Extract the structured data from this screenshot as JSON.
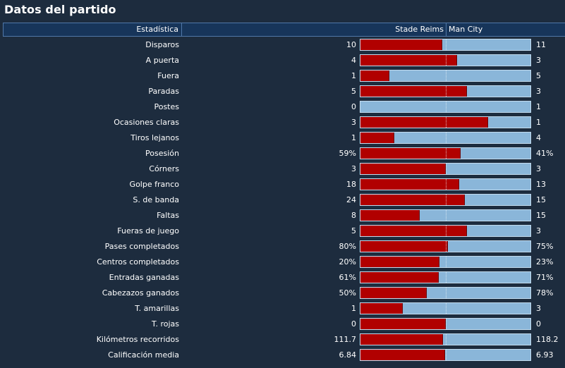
{
  "title": "Datos del partido",
  "header": {
    "stat_label": "Estadística",
    "home_team": "Stade Reims",
    "away_team": "Man City"
  },
  "colors": {
    "background": "#1d2c3e",
    "header_bg": "#17355a",
    "home_bar": "#b10000",
    "away_bar": "#8ab6d9"
  },
  "stats": [
    {
      "label": "Disparos",
      "home": "10",
      "away": "11",
      "home_share": 0.48
    },
    {
      "label": "A puerta",
      "home": "4",
      "away": "3",
      "home_share": 0.57
    },
    {
      "label": "Fuera",
      "home": "1",
      "away": "5",
      "home_share": 0.17
    },
    {
      "label": "Paradas",
      "home": "5",
      "away": "3",
      "home_share": 0.625
    },
    {
      "label": "Postes",
      "home": "0",
      "away": "1",
      "home_share": 0.0
    },
    {
      "label": "Ocasiones claras",
      "home": "3",
      "away": "1",
      "home_share": 0.75
    },
    {
      "label": "Tiros lejanos",
      "home": "1",
      "away": "4",
      "home_share": 0.2
    },
    {
      "label": "Posesión",
      "home": "59%",
      "away": "41%",
      "home_share": 0.59
    },
    {
      "label": "Córners",
      "home": "3",
      "away": "3",
      "home_share": 0.5
    },
    {
      "label": "Golpe franco",
      "home": "18",
      "away": "13",
      "home_share": 0.58
    },
    {
      "label": "S. de banda",
      "home": "24",
      "away": "15",
      "home_share": 0.615
    },
    {
      "label": "Faltas",
      "home": "8",
      "away": "15",
      "home_share": 0.35
    },
    {
      "label": "Fueras de juego",
      "home": "5",
      "away": "3",
      "home_share": 0.625
    },
    {
      "label": "Pases completados",
      "home": "80%",
      "away": "75%",
      "home_share": 0.516
    },
    {
      "label": "Centros completados",
      "home": "20%",
      "away": "23%",
      "home_share": 0.465
    },
    {
      "label": "Entradas ganadas",
      "home": "61%",
      "away": "71%",
      "home_share": 0.462
    },
    {
      "label": "Cabezazos ganados",
      "home": "50%",
      "away": "78%",
      "home_share": 0.39
    },
    {
      "label": "T. amarillas",
      "home": "1",
      "away": "3",
      "home_share": 0.25
    },
    {
      "label": "T. rojas",
      "home": "0",
      "away": "0",
      "home_share": 0.5
    },
    {
      "label": "Kilómetros recorridos",
      "home": "111.7",
      "away": "118.2",
      "home_share": 0.486
    },
    {
      "label": "Calificación media",
      "home": "6.84",
      "away": "6.93",
      "home_share": 0.497
    }
  ]
}
